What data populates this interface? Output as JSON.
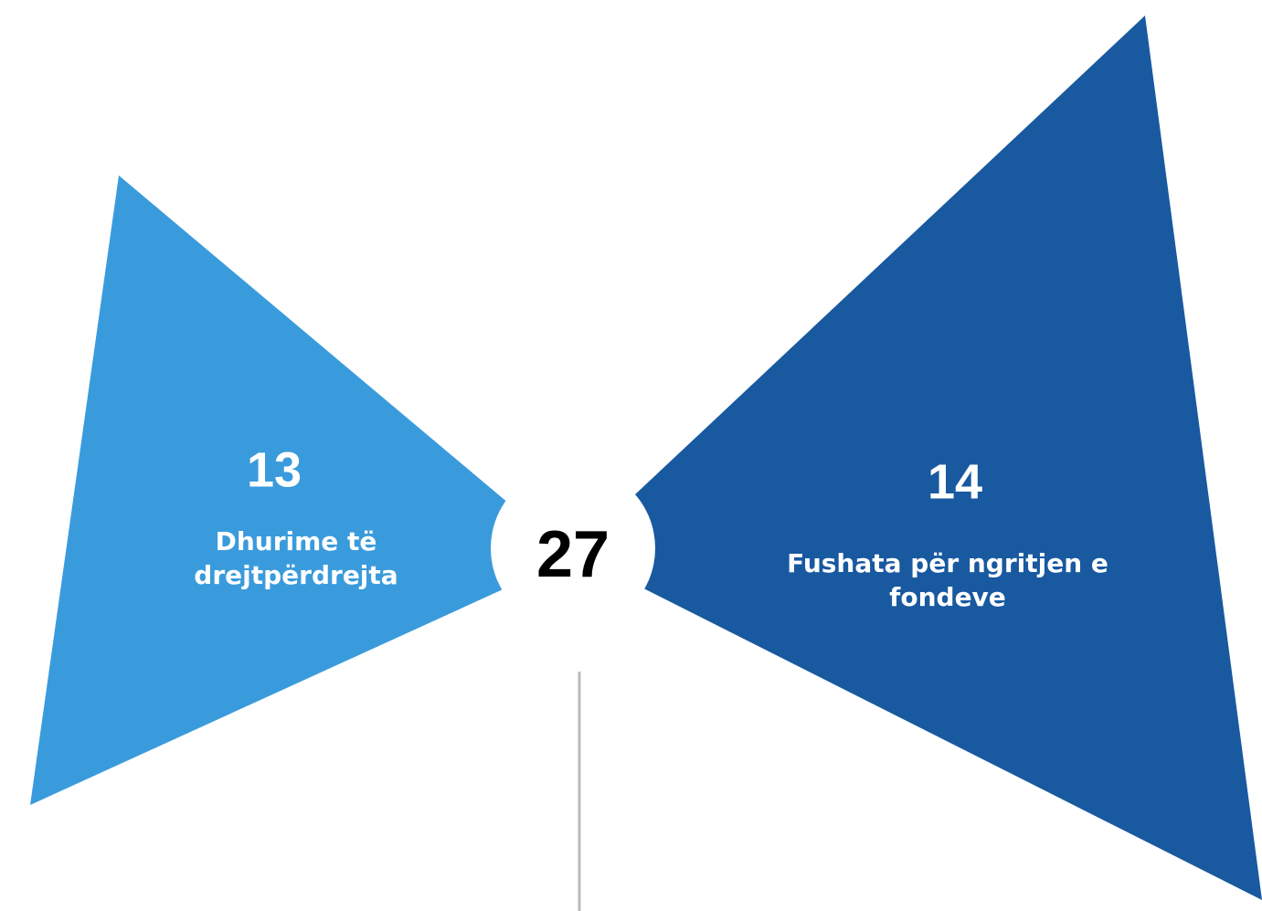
{
  "total": 27,
  "segments": [
    {
      "value": 13,
      "label_lines": [
        "Dhurime të",
        "drejtpërdrejta"
      ]
    },
    {
      "value": 14,
      "label_lines": [
        "Fushata për ngritjen e",
        "fondeve"
      ]
    }
  ]
}
